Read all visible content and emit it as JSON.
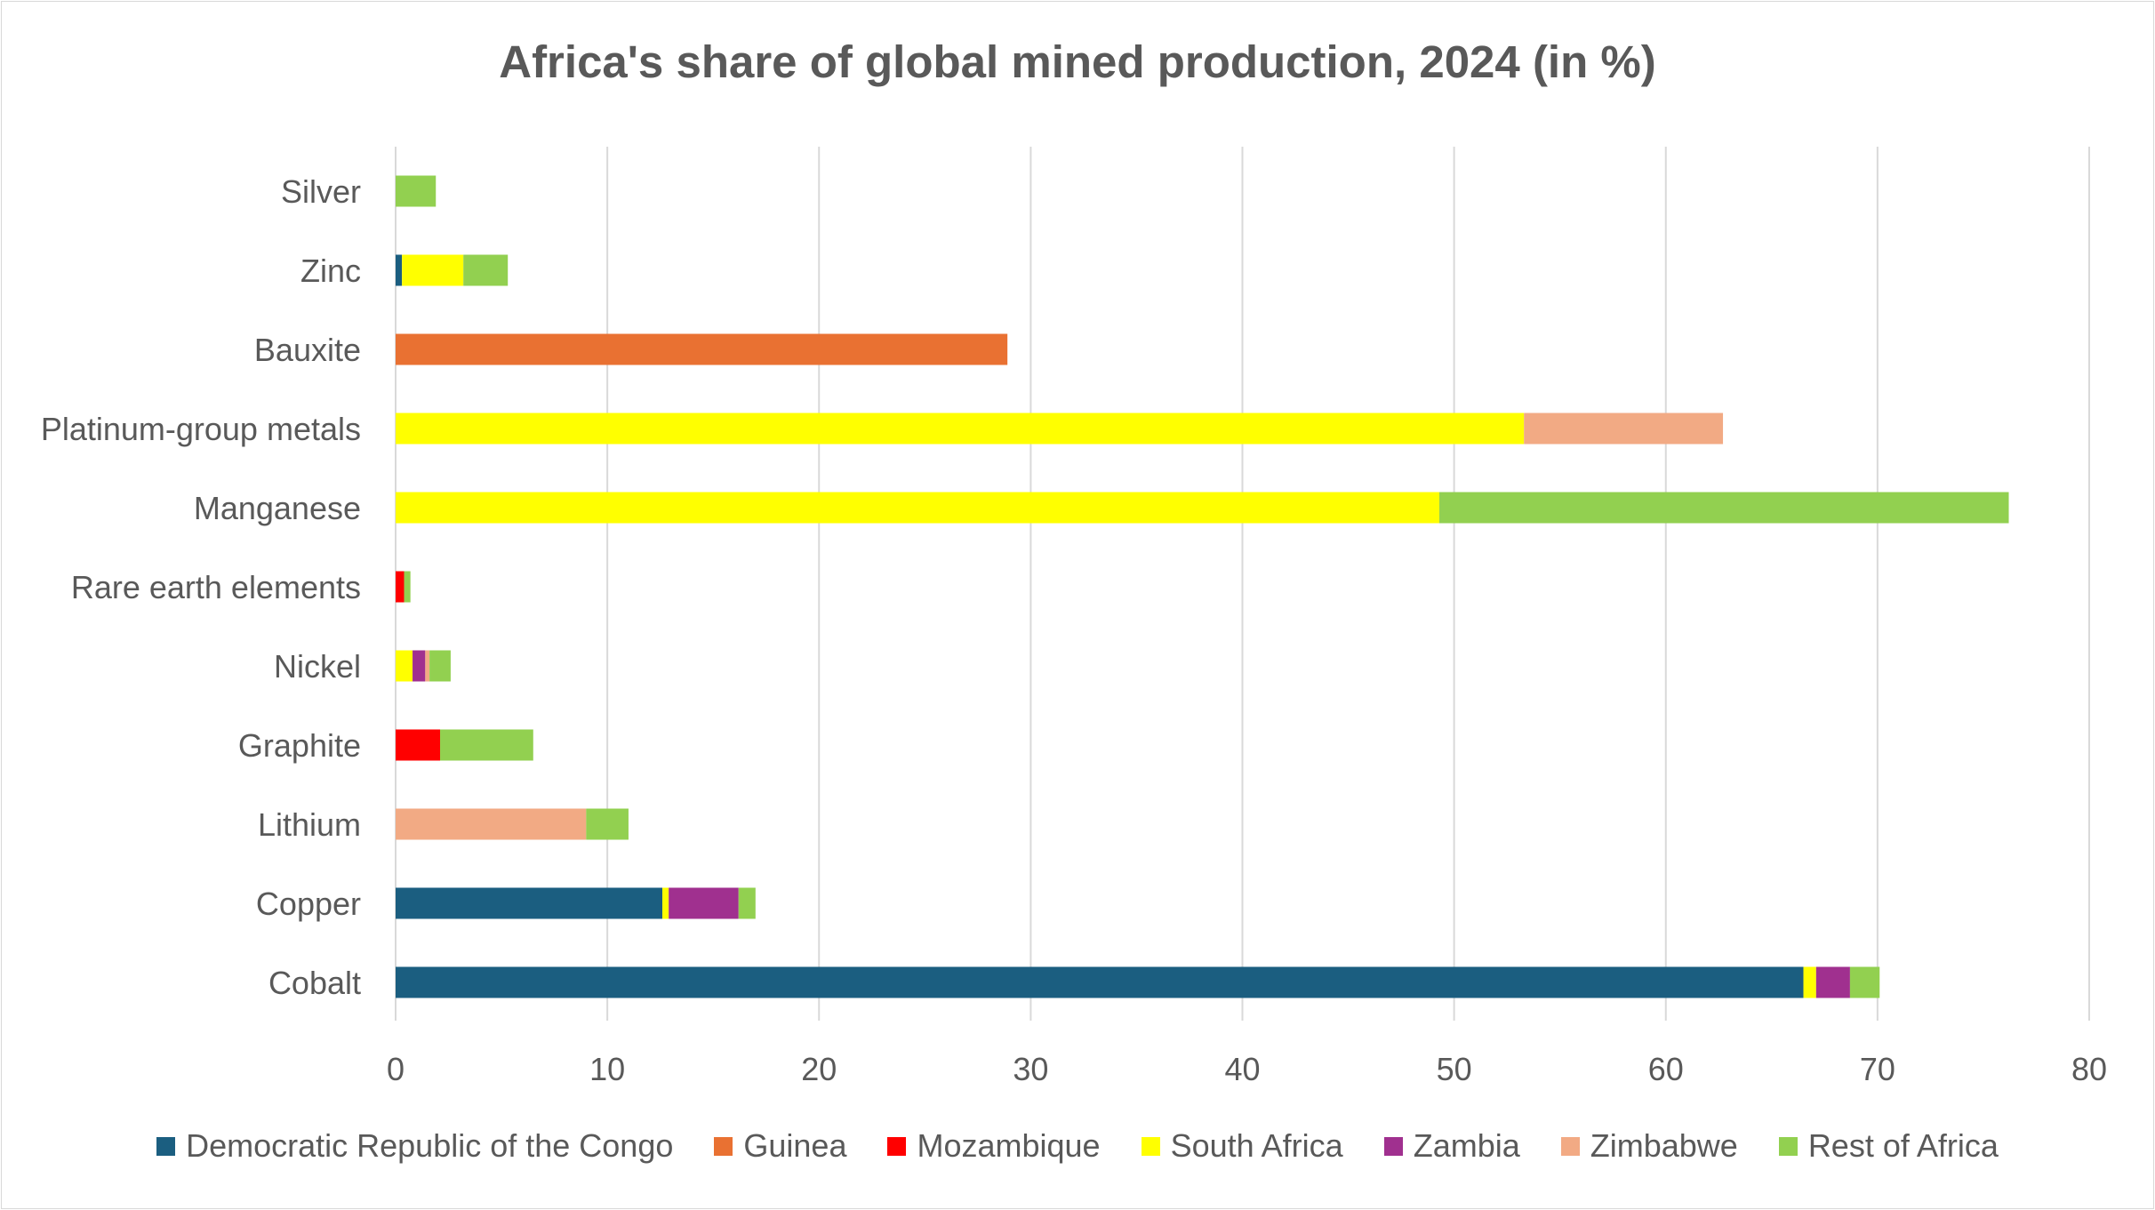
{
  "chart_data": {
    "type": "bar",
    "orientation": "horizontal",
    "stacked": true,
    "title": "Africa's share of global mined production, 2024 (in %)",
    "xlabel": "",
    "ylabel": "",
    "xlim": [
      0,
      80
    ],
    "xticks": [
      0,
      10,
      20,
      30,
      40,
      50,
      60,
      70,
      80
    ],
    "grid": "vertical",
    "legend_position": "bottom",
    "categories": [
      "Silver",
      "Zinc",
      "Bauxite",
      "Platinum-group metals",
      "Manganese",
      "Rare earth elements",
      "Nickel",
      "Graphite",
      "Lithium",
      "Copper",
      "Cobalt"
    ],
    "series": [
      {
        "name": "Democratic Republic of the Congo",
        "color": "#1b5e80",
        "values": [
          0,
          0.3,
          0,
          0,
          0,
          0,
          0,
          0,
          0,
          12.6,
          66.5
        ]
      },
      {
        "name": "Guinea",
        "color": "#e97132",
        "values": [
          0,
          0,
          28.9,
          0,
          0,
          0,
          0,
          0,
          0,
          0,
          0
        ]
      },
      {
        "name": "Mozambique",
        "color": "#ff0000",
        "values": [
          0,
          0,
          0,
          0,
          0,
          0.4,
          0,
          2.1,
          0,
          0,
          0
        ]
      },
      {
        "name": "South Africa",
        "color": "#ffff00",
        "values": [
          0,
          2.9,
          0,
          53.3,
          49.3,
          0,
          0.8,
          0,
          0,
          0.3,
          0.6
        ]
      },
      {
        "name": "Zambia",
        "color": "#a0308f",
        "values": [
          0,
          0,
          0,
          0,
          0,
          0,
          0.6,
          0,
          0,
          3.3,
          1.6
        ]
      },
      {
        "name": "Zimbabwe",
        "color": "#f2aa84",
        "values": [
          0,
          0,
          0,
          9.4,
          0,
          0,
          0.2,
          0,
          9.0,
          0,
          0
        ]
      },
      {
        "name": "Rest of Africa",
        "color": "#92d050",
        "values": [
          1.9,
          2.1,
          0,
          0,
          26.9,
          0.3,
          1.0,
          4.4,
          2.0,
          0.8,
          1.4
        ]
      }
    ]
  }
}
